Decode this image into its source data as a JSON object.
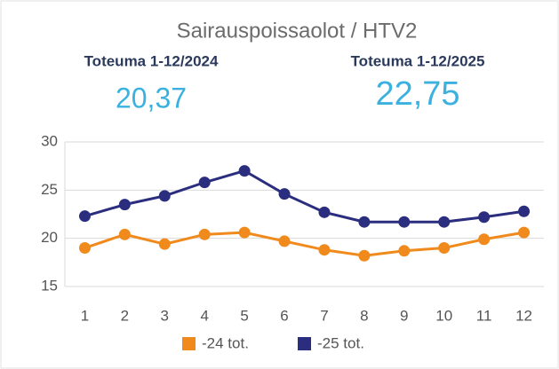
{
  "chart_data": {
    "type": "line",
    "title": "Sairauspoissaolot / HTV2",
    "categories": [
      "1",
      "2",
      "3",
      "4",
      "5",
      "6",
      "7",
      "8",
      "9",
      "10",
      "11",
      "12"
    ],
    "series": [
      {
        "name": "-24 tot.",
        "color": "#f08a1c",
        "values": [
          19.0,
          20.4,
          19.4,
          20.4,
          20.6,
          19.7,
          18.8,
          18.2,
          18.7,
          19.0,
          19.9,
          20.6
        ]
      },
      {
        "name": "-25 tot.",
        "color": "#2b2e7e",
        "values": [
          22.3,
          23.5,
          24.4,
          25.8,
          27.0,
          24.6,
          22.7,
          21.7,
          21.7,
          21.7,
          22.2,
          22.8
        ]
      }
    ],
    "ylim": [
      15,
      30
    ],
    "yticks": [
      15,
      20,
      25,
      30
    ],
    "grid": true,
    "legend": "bottom"
  },
  "kpis": [
    {
      "label": "Toteuma 1-12/2024",
      "value": "20,37"
    },
    {
      "label": "Toteuma 1-12/2025",
      "value": "22,75"
    }
  ]
}
